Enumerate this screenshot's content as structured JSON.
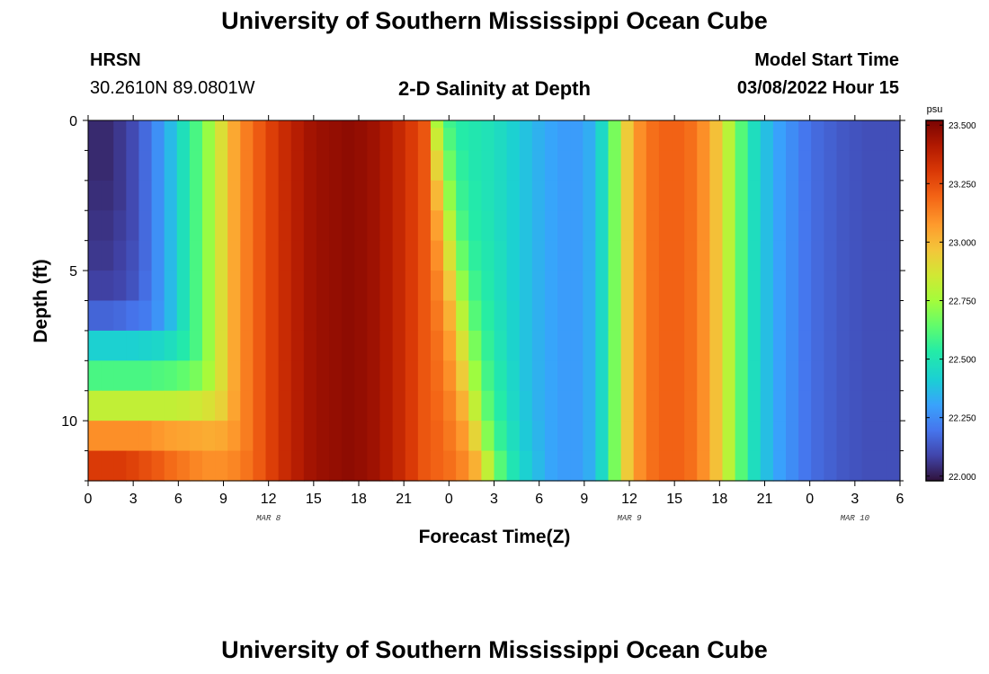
{
  "page": {
    "title": "University of Southern Mississippi Ocean Cube",
    "repeat_title": "University of Southern Mississippi Ocean Cube"
  },
  "header": {
    "station": "HRSN",
    "coords": "30.2610N  89.0801W",
    "subtitle": "2-D Salinity at Depth",
    "model_label": "Model Start Time",
    "model_time": "03/08/2022 Hour 15"
  },
  "chart_data": {
    "type": "heatmap",
    "title": "2-D Salinity at Depth",
    "xlabel": "Forecast Time(Z)",
    "ylabel": "Depth (ft)",
    "x_hours_from_mar8_00z": [
      0,
      54
    ],
    "x_tick_labels": [
      "0",
      "3",
      "6",
      "9",
      "12",
      "15",
      "18",
      "21",
      "0",
      "3",
      "6",
      "9",
      "12",
      "15",
      "18",
      "21",
      "0",
      "3",
      "6"
    ],
    "date_labels": [
      {
        "label": "MAR 8",
        "hour": 12
      },
      {
        "label": "MAR 9",
        "hour": 36
      },
      {
        "label": "MAR 10",
        "hour": 51
      }
    ],
    "ylim": [
      0,
      12
    ],
    "y_major_ticks": [
      0,
      5,
      10
    ],
    "y_minor_tick_step": 1,
    "colorbar": {
      "unit": "psu",
      "range": [
        21.98,
        23.52
      ],
      "ticks": [
        "22.000",
        "22.250",
        "22.500",
        "22.750",
        "23.000",
        "23.250",
        "23.500"
      ]
    },
    "depth_rows": [
      {
        "depth": 0.0,
        "values": [
          22.03,
          22.03,
          22.06,
          22.1,
          22.17,
          22.26,
          22.36,
          22.48,
          22.6,
          22.73,
          22.89,
          23.04,
          23.14,
          23.22,
          23.29,
          23.35,
          23.4,
          23.44,
          23.46,
          23.47,
          23.48,
          23.47,
          23.45,
          23.41,
          23.36,
          23.3,
          23.23,
          22.77,
          22.58,
          22.53,
          22.51,
          22.49,
          22.46,
          22.42,
          22.38,
          22.34,
          22.31,
          22.29,
          22.29,
          22.33,
          22.45,
          22.68,
          22.95,
          23.1,
          23.17,
          23.2,
          23.2,
          23.17,
          23.1,
          22.98,
          22.8,
          22.62,
          22.47,
          22.37,
          22.3,
          22.25,
          22.2,
          22.17,
          22.15,
          22.13,
          22.12,
          22.11,
          22.11,
          22.11
        ]
      },
      {
        "depth": 0.5,
        "values": [
          22.03,
          22.03,
          22.06,
          22.1,
          22.17,
          22.26,
          22.36,
          22.48,
          22.6,
          22.73,
          22.89,
          23.04,
          23.14,
          23.22,
          23.29,
          23.35,
          23.4,
          23.44,
          23.46,
          23.47,
          23.48,
          23.47,
          23.45,
          23.41,
          23.36,
          23.3,
          23.23,
          22.84,
          22.61,
          22.53,
          22.51,
          22.49,
          22.46,
          22.42,
          22.38,
          22.34,
          22.31,
          22.29,
          22.29,
          22.33,
          22.45,
          22.68,
          22.95,
          23.1,
          23.17,
          23.2,
          23.2,
          23.17,
          23.1,
          22.98,
          22.8,
          22.62,
          22.47,
          22.37,
          22.3,
          22.25,
          22.2,
          22.17,
          22.15,
          22.13,
          22.12,
          22.11,
          22.11,
          22.11
        ]
      },
      {
        "depth": 1.5,
        "values": [
          22.03,
          22.03,
          22.06,
          22.1,
          22.17,
          22.26,
          22.36,
          22.48,
          22.6,
          22.73,
          22.89,
          23.04,
          23.14,
          23.22,
          23.29,
          23.35,
          23.4,
          23.44,
          23.46,
          23.47,
          23.48,
          23.47,
          23.45,
          23.41,
          23.36,
          23.3,
          23.23,
          22.92,
          22.66,
          22.55,
          22.51,
          22.49,
          22.46,
          22.42,
          22.38,
          22.34,
          22.31,
          22.29,
          22.29,
          22.33,
          22.45,
          22.68,
          22.95,
          23.1,
          23.17,
          23.2,
          23.2,
          23.17,
          23.1,
          22.98,
          22.8,
          22.62,
          22.47,
          22.37,
          22.3,
          22.25,
          22.2,
          22.17,
          22.15,
          22.13,
          22.12,
          22.11,
          22.11,
          22.11
        ]
      },
      {
        "depth": 2.5,
        "values": [
          22.04,
          22.04,
          22.06,
          22.1,
          22.17,
          22.26,
          22.36,
          22.48,
          22.6,
          22.73,
          22.89,
          23.04,
          23.14,
          23.22,
          23.29,
          23.35,
          23.4,
          23.44,
          23.46,
          23.47,
          23.48,
          23.47,
          23.45,
          23.41,
          23.36,
          23.3,
          23.23,
          23.0,
          22.72,
          22.57,
          22.52,
          22.49,
          22.46,
          22.42,
          22.38,
          22.34,
          22.31,
          22.29,
          22.29,
          22.33,
          22.45,
          22.68,
          22.95,
          23.1,
          23.17,
          23.2,
          23.2,
          23.17,
          23.1,
          22.98,
          22.8,
          22.62,
          22.47,
          22.37,
          22.3,
          22.25,
          22.2,
          22.17,
          22.15,
          22.13,
          22.12,
          22.11,
          22.11,
          22.11
        ]
      },
      {
        "depth": 3.5,
        "values": [
          22.05,
          22.05,
          22.07,
          22.1,
          22.17,
          22.26,
          22.36,
          22.48,
          22.6,
          22.73,
          22.89,
          23.04,
          23.14,
          23.22,
          23.29,
          23.35,
          23.4,
          23.44,
          23.46,
          23.47,
          23.48,
          23.47,
          23.45,
          23.41,
          23.36,
          23.3,
          23.23,
          23.06,
          22.8,
          22.6,
          22.53,
          22.5,
          22.46,
          22.42,
          22.38,
          22.34,
          22.31,
          22.29,
          22.29,
          22.33,
          22.45,
          22.68,
          22.95,
          23.1,
          23.17,
          23.2,
          23.2,
          23.17,
          23.1,
          22.98,
          22.8,
          22.62,
          22.47,
          22.37,
          22.3,
          22.25,
          22.2,
          22.17,
          22.15,
          22.13,
          22.12,
          22.11,
          22.11,
          22.11
        ]
      },
      {
        "depth": 4.5,
        "values": [
          22.06,
          22.06,
          22.08,
          22.11,
          22.17,
          22.26,
          22.36,
          22.48,
          22.6,
          22.73,
          22.89,
          23.04,
          23.14,
          23.22,
          23.29,
          23.35,
          23.4,
          23.44,
          23.46,
          23.47,
          23.48,
          23.47,
          23.45,
          23.41,
          23.36,
          23.3,
          23.23,
          23.1,
          22.88,
          22.65,
          22.55,
          22.51,
          22.47,
          22.42,
          22.38,
          22.34,
          22.31,
          22.29,
          22.29,
          22.33,
          22.45,
          22.68,
          22.95,
          23.1,
          23.17,
          23.2,
          23.2,
          23.17,
          23.1,
          22.98,
          22.8,
          22.62,
          22.47,
          22.37,
          22.3,
          22.25,
          22.2,
          22.17,
          22.15,
          22.13,
          22.12,
          22.11,
          22.11,
          22.11
        ]
      },
      {
        "depth": 5.5,
        "values": [
          22.08,
          22.08,
          22.09,
          22.12,
          22.18,
          22.26,
          22.36,
          22.48,
          22.6,
          22.73,
          22.89,
          23.04,
          23.14,
          23.22,
          23.29,
          23.35,
          23.4,
          23.44,
          23.46,
          23.47,
          23.48,
          23.47,
          23.45,
          23.41,
          23.36,
          23.3,
          23.23,
          23.13,
          22.96,
          22.72,
          22.58,
          22.52,
          22.47,
          22.42,
          22.38,
          22.34,
          22.31,
          22.29,
          22.29,
          22.33,
          22.45,
          22.68,
          22.95,
          23.1,
          23.17,
          23.2,
          23.2,
          23.17,
          23.1,
          22.98,
          22.8,
          22.62,
          22.47,
          22.37,
          22.3,
          22.25,
          22.2,
          22.17,
          22.15,
          22.13,
          22.12,
          22.11,
          22.11,
          22.11
        ]
      },
      {
        "depth": 6.5,
        "values": [
          22.16,
          22.16,
          22.17,
          22.19,
          22.21,
          22.27,
          22.36,
          22.48,
          22.6,
          22.73,
          22.89,
          23.04,
          23.14,
          23.22,
          23.29,
          23.35,
          23.4,
          23.44,
          23.46,
          23.47,
          23.48,
          23.47,
          23.45,
          23.41,
          23.36,
          23.3,
          23.23,
          23.15,
          23.02,
          22.8,
          22.62,
          22.54,
          22.48,
          22.43,
          22.38,
          22.34,
          22.31,
          22.29,
          22.29,
          22.33,
          22.45,
          22.68,
          22.95,
          23.1,
          23.17,
          23.2,
          23.2,
          23.17,
          23.1,
          22.98,
          22.8,
          22.62,
          22.47,
          22.37,
          22.3,
          22.25,
          22.2,
          22.17,
          22.15,
          22.13,
          22.12,
          22.11,
          22.11,
          22.11
        ]
      },
      {
        "depth": 7.5,
        "values": [
          22.42,
          22.42,
          22.42,
          22.42,
          22.43,
          22.44,
          22.47,
          22.52,
          22.6,
          22.73,
          22.89,
          23.04,
          23.14,
          23.22,
          23.29,
          23.35,
          23.4,
          23.44,
          23.46,
          23.47,
          23.48,
          23.47,
          23.45,
          23.41,
          23.36,
          23.3,
          23.23,
          23.17,
          23.07,
          22.88,
          22.68,
          22.56,
          22.49,
          22.43,
          22.38,
          22.34,
          22.31,
          22.29,
          22.29,
          22.33,
          22.45,
          22.68,
          22.95,
          23.1,
          23.17,
          23.2,
          23.2,
          23.17,
          23.1,
          22.98,
          22.8,
          22.62,
          22.47,
          22.37,
          22.3,
          22.25,
          22.2,
          22.17,
          22.15,
          22.13,
          22.12,
          22.11,
          22.11,
          22.11
        ]
      },
      {
        "depth": 8.5,
        "values": [
          22.6,
          22.6,
          22.6,
          22.6,
          22.6,
          22.61,
          22.62,
          22.64,
          22.68,
          22.76,
          22.89,
          23.04,
          23.14,
          23.22,
          23.29,
          23.35,
          23.4,
          23.44,
          23.46,
          23.47,
          23.48,
          23.47,
          23.45,
          23.41,
          23.36,
          23.3,
          23.23,
          23.18,
          23.1,
          22.95,
          22.74,
          22.59,
          22.51,
          22.44,
          22.38,
          22.34,
          22.31,
          22.29,
          22.29,
          22.33,
          22.45,
          22.68,
          22.95,
          23.1,
          23.17,
          23.2,
          23.2,
          23.17,
          23.1,
          22.98,
          22.8,
          22.62,
          22.47,
          22.37,
          22.3,
          22.25,
          22.2,
          22.17,
          22.15,
          22.13,
          22.12,
          22.11,
          22.11,
          22.11
        ]
      },
      {
        "depth": 9.5,
        "values": [
          22.82,
          22.82,
          22.82,
          22.82,
          22.82,
          22.82,
          22.82,
          22.83,
          22.85,
          22.88,
          22.93,
          23.05,
          23.14,
          23.22,
          23.29,
          23.35,
          23.4,
          23.44,
          23.46,
          23.47,
          23.48,
          23.47,
          23.45,
          23.41,
          23.36,
          23.3,
          23.23,
          23.19,
          23.13,
          23.02,
          22.82,
          22.63,
          22.53,
          22.45,
          22.39,
          22.34,
          22.31,
          22.29,
          22.29,
          22.33,
          22.45,
          22.68,
          22.95,
          23.1,
          23.17,
          23.2,
          23.2,
          23.17,
          23.1,
          22.98,
          22.8,
          22.62,
          22.47,
          22.37,
          22.3,
          22.25,
          22.2,
          22.17,
          22.15,
          22.13,
          22.12,
          22.11,
          22.11,
          22.11
        ]
      },
      {
        "depth": 10.5,
        "values": [
          23.1,
          23.1,
          23.1,
          23.1,
          23.1,
          23.08,
          23.06,
          23.05,
          23.04,
          23.03,
          23.04,
          23.08,
          23.14,
          23.22,
          23.29,
          23.35,
          23.4,
          23.44,
          23.46,
          23.47,
          23.48,
          23.47,
          23.45,
          23.41,
          23.36,
          23.3,
          23.23,
          23.2,
          23.15,
          23.08,
          22.92,
          22.7,
          22.56,
          22.47,
          22.4,
          22.35,
          22.31,
          22.29,
          22.29,
          22.33,
          22.45,
          22.68,
          22.95,
          23.1,
          23.17,
          23.2,
          23.2,
          23.17,
          23.1,
          22.98,
          22.8,
          22.62,
          22.47,
          22.37,
          22.3,
          22.25,
          22.2,
          22.17,
          22.15,
          22.13,
          22.12,
          22.11,
          22.11,
          22.11
        ]
      },
      {
        "depth": 11.5,
        "values": [
          23.3,
          23.3,
          23.3,
          23.28,
          23.25,
          23.22,
          23.18,
          23.15,
          23.12,
          23.1,
          23.1,
          23.12,
          23.16,
          23.22,
          23.29,
          23.35,
          23.4,
          23.44,
          23.46,
          23.47,
          23.48,
          23.47,
          23.45,
          23.41,
          23.36,
          23.3,
          23.23,
          23.2,
          23.17,
          23.12,
          23.02,
          22.82,
          22.62,
          22.5,
          22.42,
          22.36,
          22.31,
          22.29,
          22.29,
          22.33,
          22.45,
          22.68,
          22.95,
          23.1,
          23.17,
          23.2,
          23.2,
          23.17,
          23.1,
          22.98,
          22.8,
          22.62,
          22.47,
          22.37,
          22.3,
          22.25,
          22.2,
          22.17,
          22.15,
          22.13,
          22.12,
          22.11,
          22.11,
          22.11
        ]
      }
    ]
  }
}
